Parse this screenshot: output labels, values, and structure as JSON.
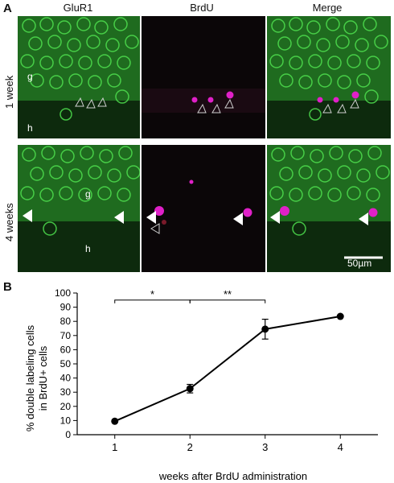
{
  "panel_a": {
    "letter": "A",
    "columns": [
      "GluR1",
      "BrdU",
      "Merge"
    ],
    "rows": [
      "1 week",
      "4 weeks"
    ],
    "region_labels": {
      "granule": "g",
      "hilus": "h"
    },
    "scale_bar": "50µm",
    "colors": {
      "glur1": "#2fbf2f",
      "brdu": "#e020c8",
      "background": "#0a0a0a"
    }
  },
  "panel_b": {
    "letter": "B"
  },
  "chart_data": {
    "type": "line",
    "x": [
      1,
      2,
      3,
      4
    ],
    "xlabel": "weeks after BrdU administration",
    "ylabel_lines": [
      "% double labeling cells",
      "in BrdU+ cells"
    ],
    "xlim": [
      0.5,
      4.5
    ],
    "ylim": [
      0,
      100
    ],
    "yticks": [
      0,
      10,
      20,
      30,
      40,
      50,
      60,
      70,
      80,
      90,
      100
    ],
    "xticks": [
      1,
      2,
      3,
      4
    ],
    "series": [
      {
        "values": [
          9.5,
          32.5,
          74.5,
          83.5
        ],
        "errors": [
          0,
          3,
          7,
          0
        ]
      }
    ],
    "significance": [
      {
        "from": 1,
        "to": 2,
        "label": "*"
      },
      {
        "from": 2,
        "to": 3,
        "label": "**"
      }
    ],
    "grid": false
  }
}
